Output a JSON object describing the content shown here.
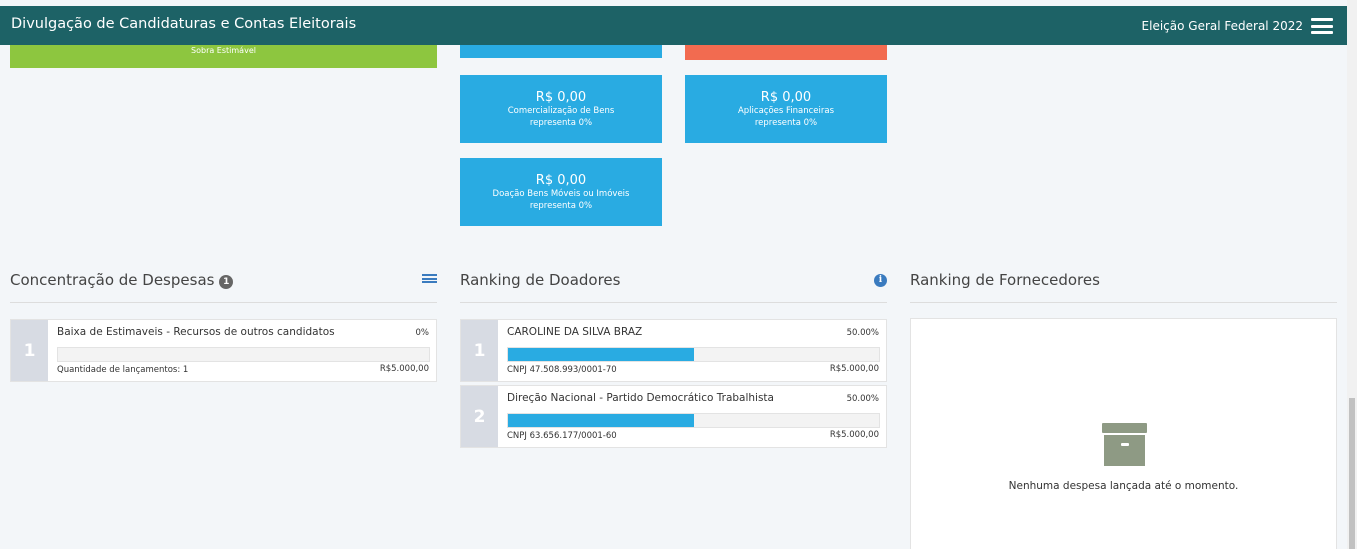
{
  "header": {
    "title": "Divulgação de Candidaturas e Contas Eleitorais",
    "election": "Eleição Geral Federal 2022"
  },
  "top_cards": {
    "green_label": "Sobra Estimável"
  },
  "revenue_cards": [
    {
      "amount": "R$ 0,00",
      "label": "Comercialização de Bens",
      "share": "representa 0%"
    },
    {
      "amount": "R$ 0,00",
      "label": "Aplicações Financeiras",
      "share": "representa 0%"
    },
    {
      "amount": "R$ 0,00",
      "label": "Doação Bens Móveis ou Imóveis",
      "share": "representa 0%"
    }
  ],
  "expenses": {
    "title": "Concentração de Despesas",
    "badge": "1",
    "items": [
      {
        "rank": "1",
        "name": "Baixa de Estimaveis - Recursos de outros candidatos",
        "percent": "0%",
        "fill": 0,
        "sub": "Quantidade de lançamentos: 1",
        "value": "R$5.000,00"
      }
    ]
  },
  "donors": {
    "title": "Ranking de Doadores",
    "items": [
      {
        "rank": "1",
        "name": "CAROLINE DA SILVA BRAZ",
        "percent": "50.00%",
        "fill": 0.5,
        "sub": "CNPJ 47.508.993/0001-70",
        "value": "R$5.000,00"
      },
      {
        "rank": "2",
        "name": "Direção Nacional - Partido Democrático Trabalhista",
        "percent": "50.00%",
        "fill": 0.5,
        "sub": "CNPJ 63.656.177/0001-60",
        "value": "R$5.000,00"
      }
    ]
  },
  "suppliers": {
    "title": "Ranking de Fornecedores",
    "empty_message": "Nenhuma despesa lançada até o momento."
  },
  "colors": {
    "header": "#1d6266",
    "blue": "#29abe2",
    "green": "#8dc63f",
    "red": "#f26b50"
  },
  "icons": [
    "menu-icon",
    "list-icon",
    "info-icon",
    "archive-icon"
  ]
}
